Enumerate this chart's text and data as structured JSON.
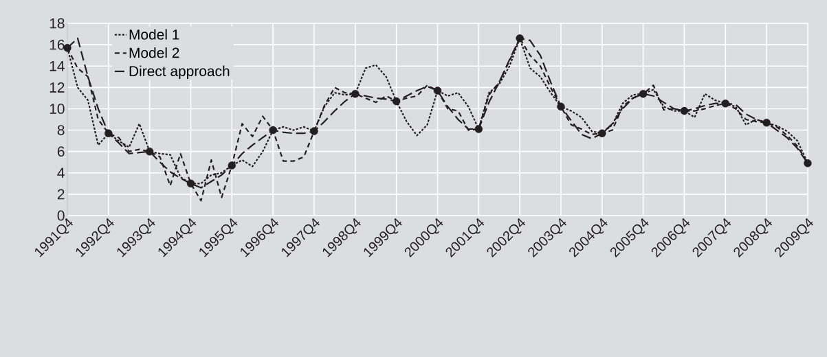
{
  "chart_data": {
    "type": "line",
    "categories": [
      "1991Q4",
      null,
      null,
      null,
      "1992Q4",
      null,
      null,
      null,
      "1993Q4",
      null,
      null,
      null,
      "1994Q4",
      null,
      null,
      null,
      "1995Q4",
      null,
      null,
      null,
      "1996Q4",
      null,
      null,
      null,
      "1997Q4",
      null,
      null,
      null,
      "1998Q4",
      null,
      null,
      null,
      "1999Q4",
      null,
      null,
      null,
      "2000Q4",
      null,
      null,
      null,
      "2001Q4",
      null,
      null,
      null,
      "2002Q4",
      null,
      null,
      null,
      "2003Q4",
      null,
      null,
      null,
      "2004Q4",
      null,
      null,
      null,
      "2005Q4",
      null,
      null,
      null,
      "2006Q4",
      null,
      null,
      null,
      "2007Q4",
      null,
      null,
      null,
      "2008Q4",
      null,
      null,
      null,
      "2009Q4"
    ],
    "series": [
      {
        "name": "Model 1",
        "color": "#231f20",
        "line_style": "dotted",
        "values": [
          15.7,
          12.0,
          10.8,
          6.6,
          7.7,
          7.0,
          6.4,
          8.6,
          6.0,
          5.8,
          5.7,
          3.6,
          3.0,
          3.0,
          3.8,
          4.0,
          4.7,
          5.2,
          4.6,
          6.0,
          8.0,
          8.3,
          8.0,
          8.3,
          7.9,
          10.2,
          11.5,
          11.3,
          11.4,
          13.8,
          14.1,
          13.0,
          10.7,
          8.8,
          7.5,
          8.5,
          11.7,
          11.2,
          11.5,
          10.2,
          8.1,
          11.5,
          12.3,
          14.0,
          16.6,
          13.8,
          13.0,
          11.5,
          10.2,
          9.8,
          9.2,
          7.9,
          7.7,
          8.5,
          10.5,
          11.3,
          11.4,
          11.8,
          10.2,
          9.8,
          9.8,
          9.2,
          11.4,
          10.8,
          10.5,
          10.2,
          8.5,
          9.0,
          8.7,
          8.4,
          7.9,
          7.0,
          4.9
        ]
      },
      {
        "name": "Model 2",
        "color": "#231f20",
        "line_style": "dashed",
        "values": [
          15.7,
          13.8,
          13.0,
          9.0,
          7.7,
          7.3,
          6.0,
          6.2,
          6.0,
          5.5,
          2.8,
          5.8,
          3.0,
          1.4,
          5.2,
          1.7,
          4.7,
          8.6,
          7.4,
          9.3,
          8.0,
          5.1,
          5.1,
          5.5,
          7.9,
          10.3,
          12.0,
          11.5,
          11.4,
          11.0,
          10.6,
          11.2,
          10.7,
          11.0,
          11.2,
          12.2,
          11.7,
          10.0,
          9.8,
          8.0,
          8.1,
          11.3,
          12.5,
          14.5,
          16.6,
          15.0,
          14.0,
          12.0,
          10.2,
          8.5,
          8.1,
          7.6,
          7.7,
          8.0,
          10.2,
          11.0,
          11.4,
          12.2,
          9.9,
          10.0,
          9.8,
          9.8,
          10.0,
          10.3,
          10.5,
          10.0,
          9.0,
          8.8,
          8.7,
          8.3,
          7.5,
          6.5,
          4.9
        ]
      },
      {
        "name": "Direct approach",
        "color": "#231f20",
        "line_style": "dashed",
        "values": [
          15.7,
          16.6,
          13.0,
          10.0,
          7.7,
          6.8,
          5.8,
          5.9,
          6.0,
          5.0,
          4.1,
          3.5,
          3.0,
          2.6,
          3.2,
          3.8,
          4.7,
          5.8,
          6.6,
          7.3,
          8.0,
          7.8,
          7.7,
          7.7,
          7.9,
          8.8,
          9.8,
          10.7,
          11.4,
          11.2,
          11.0,
          10.9,
          10.7,
          11.2,
          11.7,
          12.1,
          11.7,
          10.2,
          9.0,
          8.1,
          8.1,
          10.6,
          12.5,
          14.6,
          16.6,
          16.4,
          15.0,
          12.5,
          10.2,
          8.9,
          7.6,
          7.2,
          7.7,
          8.6,
          10.0,
          11.0,
          11.4,
          11.2,
          10.6,
          10.0,
          9.8,
          10.0,
          10.3,
          10.5,
          10.5,
          10.4,
          9.5,
          9.0,
          8.7,
          8.0,
          7.3,
          6.3,
          4.9
        ]
      },
      {
        "type": "scatter",
        "color": "#231f20",
        "marker": "circle",
        "values": [
          15.7,
          null,
          null,
          null,
          7.7,
          null,
          null,
          null,
          6.0,
          null,
          null,
          null,
          3.0,
          null,
          null,
          null,
          4.7,
          null,
          null,
          null,
          8.0,
          null,
          null,
          null,
          7.9,
          null,
          null,
          null,
          11.4,
          null,
          null,
          null,
          10.7,
          null,
          null,
          null,
          11.7,
          null,
          null,
          null,
          8.1,
          null,
          null,
          null,
          16.6,
          null,
          null,
          null,
          10.2,
          null,
          null,
          null,
          7.7,
          null,
          null,
          null,
          11.4,
          null,
          null,
          null,
          9.8,
          null,
          null,
          null,
          10.5,
          null,
          null,
          null,
          8.7,
          null,
          null,
          null,
          4.9
        ]
      }
    ],
    "ylim": [
      0,
      18
    ],
    "yticks": [
      0,
      2,
      4,
      6,
      8,
      10,
      12,
      14,
      16,
      18
    ],
    "grid": true,
    "legend": "top left",
    "marker": "none"
  }
}
